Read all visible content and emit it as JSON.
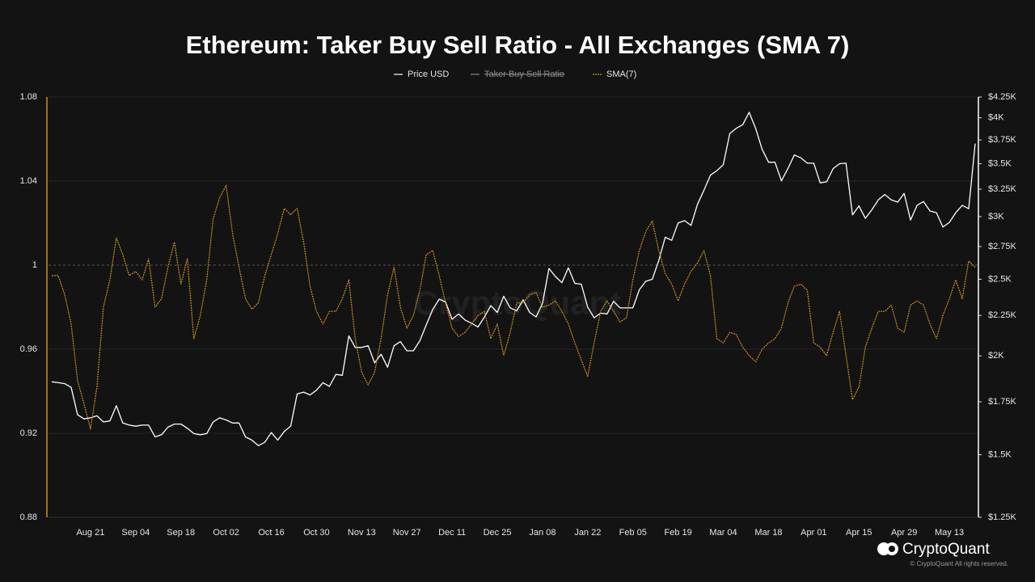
{
  "chart_data": {
    "type": "line",
    "title": "Ethereum: Taker Buy Sell Ratio - All Exchanges (SMA 7)",
    "brand": "CryptoQuant",
    "copyright": "© CryptoQuant All rights reserved.",
    "categories": [
      null,
      null,
      null,
      null,
      null,
      null,
      "Aug 21",
      null,
      null,
      null,
      null,
      null,
      null,
      "Sep 04",
      null,
      null,
      null,
      null,
      null,
      null,
      "Sep 18",
      null,
      null,
      null,
      null,
      null,
      null,
      "Oct 02",
      null,
      null,
      null,
      null,
      null,
      null,
      "Oct 16",
      null,
      null,
      null,
      null,
      null,
      null,
      "Oct 30",
      null,
      null,
      null,
      null,
      null,
      null,
      "Nov 13",
      null,
      null,
      null,
      null,
      null,
      null,
      "Nov 27",
      null,
      null,
      null,
      null,
      null,
      null,
      "Dec 11",
      null,
      null,
      null,
      null,
      null,
      null,
      "Dec 25",
      null,
      null,
      null,
      null,
      null,
      null,
      "Jan 08",
      null,
      null,
      null,
      null,
      null,
      null,
      "Jan 22",
      null,
      null,
      null,
      null,
      null,
      null,
      "Feb 05",
      null,
      null,
      null,
      null,
      null,
      null,
      "Feb 19",
      null,
      null,
      null,
      null,
      null,
      null,
      "Mar 04",
      null,
      null,
      null,
      null,
      null,
      null,
      "Mar 18",
      null,
      null,
      null,
      null,
      null,
      null,
      "Apr 01",
      null,
      null,
      null,
      null,
      null,
      null,
      "Apr 15",
      null,
      null,
      null,
      null,
      null,
      null,
      "Apr 29",
      null,
      null,
      null,
      null,
      null,
      null,
      "May 13",
      null,
      null,
      null,
      null
    ],
    "series": [
      {
        "name": "Price USD",
        "color": "#ffffff",
        "axis": "y2",
        "values": [
          1855,
          1850,
          1845,
          1825,
          1685,
          1665,
          1670,
          1680,
          1650,
          1655,
          1730,
          1645,
          1635,
          1630,
          1635,
          1635,
          1580,
          1590,
          1625,
          1640,
          1640,
          1620,
          1595,
          1590,
          1595,
          1650,
          1670,
          1660,
          1645,
          1645,
          1580,
          1565,
          1540,
          1555,
          1600,
          1565,
          1605,
          1630,
          1790,
          1800,
          1785,
          1810,
          1850,
          1830,
          1895,
          1890,
          2120,
          2050,
          2050,
          2060,
          1960,
          2010,
          1935,
          2060,
          2085,
          2030,
          2030,
          2090,
          2190,
          2290,
          2360,
          2340,
          2225,
          2260,
          2220,
          2200,
          2175,
          2240,
          2315,
          2270,
          2380,
          2300,
          2280,
          2355,
          2270,
          2240,
          2330,
          2580,
          2520,
          2475,
          2585,
          2470,
          2465,
          2305,
          2235,
          2265,
          2260,
          2345,
          2300,
          2300,
          2300,
          2425,
          2485,
          2500,
          2640,
          2825,
          2800,
          2945,
          2965,
          2925,
          3110,
          3240,
          3385,
          3430,
          3490,
          3820,
          3880,
          3920,
          4065,
          3880,
          3650,
          3515,
          3515,
          3330,
          3450,
          3590,
          3560,
          3505,
          3505,
          3310,
          3320,
          3450,
          3500,
          3505,
          3015,
          3095,
          2985,
          3060,
          3150,
          3200,
          3150,
          3130,
          3210,
          2970,
          3100,
          3135,
          3050,
          3035,
          2910,
          2950,
          3035,
          3100,
          3070,
          3710
        ]
      },
      {
        "name": "Taker Buy Sell Ratio",
        "color": "#8a8a8a",
        "hidden": true
      },
      {
        "name": "SMA(7)",
        "color": "#c8911f",
        "dashed": true,
        "values": [
          0.995,
          0.995,
          0.986,
          0.972,
          0.945,
          0.934,
          0.922,
          0.942,
          0.98,
          0.993,
          1.013,
          1.005,
          0.995,
          0.997,
          0.993,
          1.003,
          0.98,
          0.984,
          0.999,
          1.011,
          0.991,
          1.003,
          0.965,
          0.976,
          0.993,
          1.022,
          1.032,
          1.038,
          1.015,
          0.999,
          0.984,
          0.979,
          0.982,
          0.995,
          1.005,
          1.015,
          1.027,
          1.024,
          1.027,
          1.011,
          0.99,
          0.978,
          0.972,
          0.978,
          0.978,
          0.984,
          0.993,
          0.965,
          0.949,
          0.943,
          0.949,
          0.965,
          0.986,
          0.999,
          0.98,
          0.97,
          0.976,
          0.988,
          1.005,
          1.007,
          0.995,
          0.982,
          0.97,
          0.966,
          0.968,
          0.972,
          0.976,
          0.978,
          0.965,
          0.972,
          0.957,
          0.968,
          0.982,
          0.982,
          0.986,
          0.987,
          0.98,
          0.981,
          0.983,
          0.978,
          0.972,
          0.963,
          0.955,
          0.947,
          0.963,
          0.978,
          0.983,
          0.978,
          0.973,
          0.975,
          0.993,
          1.007,
          1.016,
          1.021,
          1.007,
          0.996,
          0.991,
          0.983,
          0.991,
          0.997,
          1.001,
          1.007,
          0.995,
          0.965,
          0.963,
          0.968,
          0.967,
          0.961,
          0.957,
          0.954,
          0.96,
          0.963,
          0.965,
          0.97,
          0.982,
          0.99,
          0.991,
          0.988,
          0.963,
          0.961,
          0.957,
          0.968,
          0.978,
          0.957,
          0.936,
          0.942,
          0.961,
          0.97,
          0.978,
          0.978,
          0.981,
          0.97,
          0.968,
          0.981,
          0.983,
          0.981,
          0.972,
          0.965,
          0.976,
          0.984,
          0.993,
          0.984,
          1.002,
          0.999
        ]
      }
    ],
    "ylim": [
      0.88,
      1.08
    ],
    "yticks": [
      0.88,
      0.92,
      0.96,
      1,
      1.04,
      1.08
    ],
    "reference_line": 1,
    "y2lim": [
      1250,
      4250
    ],
    "y2scale": "log",
    "y2ticks": [
      {
        "value": 1250,
        "label": "$1.25K"
      },
      {
        "value": 1500,
        "label": "$1.5K"
      },
      {
        "value": 1750,
        "label": "$1.75K"
      },
      {
        "value": 2000,
        "label": "$2K"
      },
      {
        "value": 2250,
        "label": "$2.25K"
      },
      {
        "value": 2500,
        "label": "$2.5K"
      },
      {
        "value": 2750,
        "label": "$2.75K"
      },
      {
        "value": 3000,
        "label": "$3K"
      },
      {
        "value": 3250,
        "label": "$3.25K"
      },
      {
        "value": 3500,
        "label": "$3.5K"
      },
      {
        "value": 3750,
        "label": "$3.75K"
      },
      {
        "value": 4000,
        "label": "$4K"
      },
      {
        "value": 4250,
        "label": "$4.25K"
      }
    ],
    "grid": true
  }
}
